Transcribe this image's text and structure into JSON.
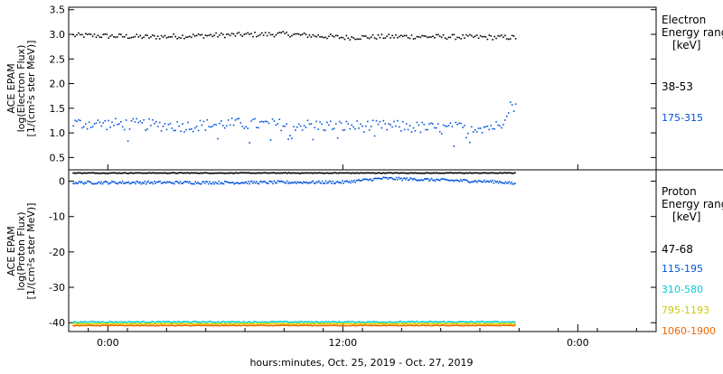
{
  "xlabel": "hours:minutes, Oct. 25, 2019 - Oct. 27, 2019",
  "x_ticks": [
    {
      "label": "0:00",
      "hour": 0
    },
    {
      "label": "12:00",
      "hour": 12
    },
    {
      "label": "0:00",
      "hour": 24
    }
  ],
  "panels": [
    {
      "id": "electron",
      "ylabel": [
        "ACE EPAM",
        "log(Electron Flux)",
        "[1/(cm²s ster MeV)]"
      ],
      "legend_title": [
        "Electron",
        "Energy ranges",
        "[keV]"
      ],
      "series_labels": [
        "38-53",
        "175-315"
      ],
      "series_colors": [
        "#000000",
        "#0055dd"
      ],
      "y_ticks": [
        "0.5",
        "1.0",
        "1.5",
        "2.0",
        "2.5",
        "3.0",
        "3.5"
      ]
    },
    {
      "id": "proton",
      "ylabel": [
        "ACE EPAM",
        "log(Proton Flux)",
        "[1/(cm²s ster MeV)]"
      ],
      "legend_title": [
        "Proton",
        "Energy ranges",
        "[keV]"
      ],
      "series_labels": [
        "47-68",
        "115-195",
        "310-580",
        "795-1193",
        "1060-1900"
      ],
      "series_colors": [
        "#000000",
        "#0055dd",
        "#00ccdd",
        "#dddd00",
        "#ee6600"
      ],
      "y_ticks": [
        "0",
        "-10",
        "-20",
        "-30",
        "-40"
      ]
    }
  ],
  "chart_data": [
    {
      "type": "scatter",
      "title": "",
      "xlabel": "hours:minutes, Oct. 25, 2019 - Oct. 27, 2019",
      "ylabel": "ACE EPAM log(Electron Flux) [1/(cm²s ster MeV)]",
      "xlim": [
        -2,
        28
      ],
      "ylim": [
        0.25,
        3.55
      ],
      "x_data_end": 20.8,
      "series": [
        {
          "name": "38-53",
          "color": "#000000",
          "level": 2.97,
          "spread": 0.05,
          "x": [
            -1,
            2,
            6,
            9,
            12,
            15,
            18,
            20.8
          ],
          "y": [
            2.99,
            2.96,
            3.0,
            3.02,
            2.95,
            2.97,
            2.96,
            2.95
          ]
        },
        {
          "name": "175-315",
          "color": "#0055dd",
          "level": 1.15,
          "spread": 0.12,
          "x": [
            -1,
            2,
            4,
            6,
            9,
            12,
            14.6,
            17,
            20,
            20.5,
            20.8
          ],
          "y": [
            1.2,
            1.18,
            1.15,
            1.2,
            1.18,
            1.15,
            1.15,
            1.1,
            1.15,
            1.6,
            1.5
          ]
        }
      ]
    },
    {
      "type": "scatter",
      "title": "",
      "xlabel": "hours:minutes, Oct. 25, 2019 - Oct. 27, 2019",
      "ylabel": "ACE EPAM log(Proton Flux) [1/(cm²s ster MeV)]",
      "xlim": [
        -2,
        28
      ],
      "ylim": [
        -42.5,
        3.2
      ],
      "x_data_end": 20.8,
      "series": [
        {
          "name": "47-68",
          "color": "#000000",
          "level": 2.5,
          "spread": 0.1,
          "x": [
            -2,
            20.8
          ],
          "y": [
            2.5,
            2.5
          ]
        },
        {
          "name": "115-195",
          "color": "#0055dd",
          "level": 0.0,
          "spread": 0.4,
          "x": [
            -2,
            6,
            12,
            14,
            17,
            20,
            20.8
          ],
          "y": [
            -0.2,
            -0.2,
            -0.1,
            1.0,
            0.5,
            0.0,
            -0.6
          ]
        },
        {
          "name": "310-580",
          "color": "#00ccdd",
          "level": -39.6,
          "spread": 0.2,
          "x": [
            -2,
            20.8
          ],
          "y": [
            -39.6,
            -39.6
          ]
        },
        {
          "name": "795-1193",
          "color": "#dddd00",
          "level": -40.1,
          "spread": 0.1,
          "x": [
            -2,
            20.8
          ],
          "y": [
            -40.1,
            -40.1
          ]
        },
        {
          "name": "1060-1900",
          "color": "#ee6600",
          "level": -40.6,
          "spread": 0.1,
          "x": [
            -2,
            20.8
          ],
          "y": [
            -40.6,
            -40.6
          ]
        }
      ]
    }
  ]
}
